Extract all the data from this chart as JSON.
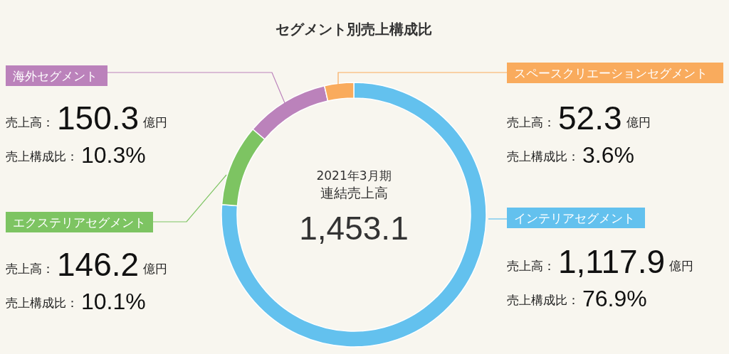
{
  "chart_data": {
    "type": "donut",
    "title": "セグメント別売上構成比",
    "categories": [
      "インテリアセグメント",
      "エクステリアセグメント",
      "海外セグメント",
      "スペースクリエーションセグメント"
    ],
    "values": [
      1117.9,
      146.2,
      150.3,
      52.3
    ],
    "colors": [
      "#63c1ee",
      "#7dc462",
      "#bb82bb",
      "#f9ab5d"
    ],
    "value_labels": [
      "1,117.9",
      "146.2",
      "150.3",
      "52.3"
    ],
    "annotations": [
      "2021年3月期",
      "連結売上高",
      "1,453.1",
      "売上高：",
      "億円",
      "売上構成比：",
      "76.9%",
      "10.1%",
      "10.3%",
      "3.6%"
    ]
  }
}
